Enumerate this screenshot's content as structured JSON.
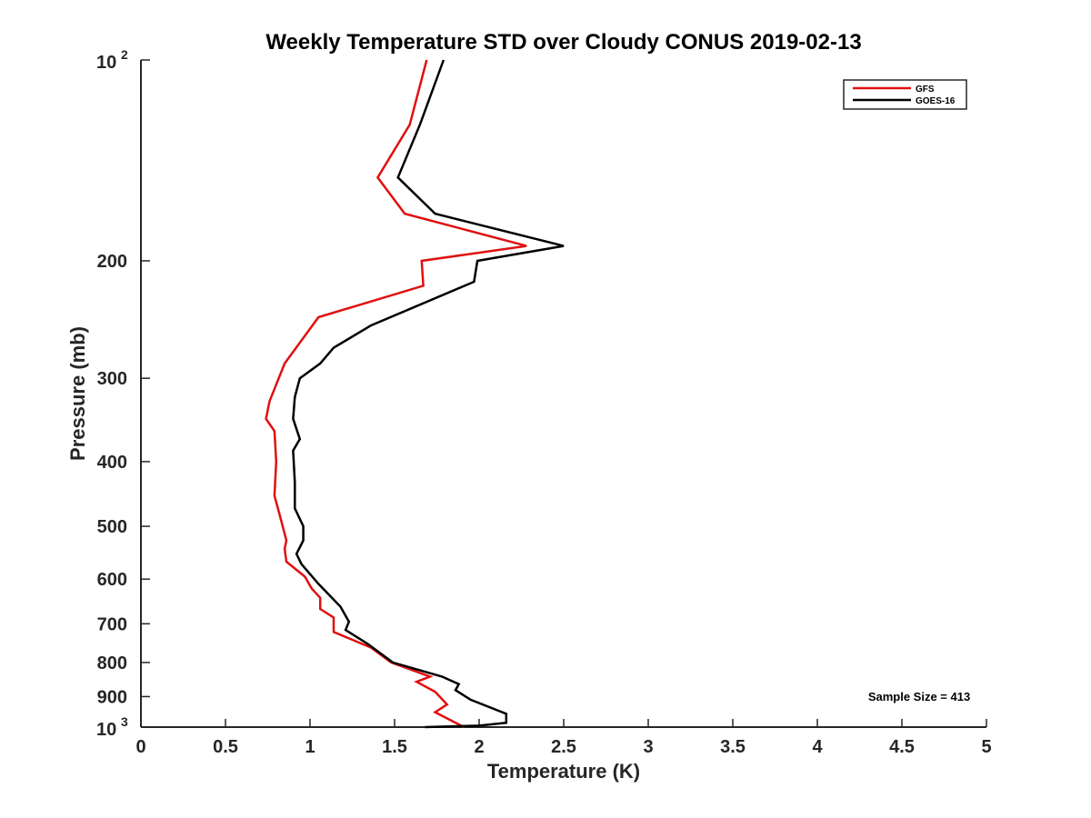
{
  "chart_data": {
    "type": "line",
    "title": "Weekly Temperature STD over Cloudy CONUS 2019-02-13",
    "xlabel": "Temperature (K)",
    "ylabel": "Pressure (mb)",
    "xlim": [
      0,
      5
    ],
    "ylim": [
      100,
      1000
    ],
    "yscale": "log",
    "yreversed": true,
    "grid": false,
    "legend_position": "top-right",
    "x_ticks": [
      0,
      0.5,
      1,
      1.5,
      2,
      2.5,
      3,
      3.5,
      4,
      4.5,
      5
    ],
    "x_tick_labels": [
      "0",
      "0.5",
      "1",
      "1.5",
      "2",
      "2.5",
      "3",
      "3.5",
      "4",
      "4.5",
      "5"
    ],
    "y_ticks": [
      {
        "value": 100,
        "base": "10",
        "exp": "2"
      },
      {
        "value": 200,
        "label": "200"
      },
      {
        "value": 300,
        "label": "300"
      },
      {
        "value": 400,
        "label": "400"
      },
      {
        "value": 500,
        "label": "500"
      },
      {
        "value": 600,
        "label": "600"
      },
      {
        "value": 700,
        "label": "700"
      },
      {
        "value": 800,
        "label": "800"
      },
      {
        "value": 900,
        "label": "900"
      },
      {
        "value": 1000,
        "base": "10",
        "exp": "3"
      }
    ],
    "series": [
      {
        "name": "GFS",
        "color": "#e01010",
        "points": [
          [
            1.69,
            100
          ],
          [
            1.59,
            125
          ],
          [
            1.4,
            150
          ],
          [
            1.56,
            170
          ],
          [
            2.28,
            190
          ],
          [
            1.66,
            200
          ],
          [
            1.67,
            218
          ],
          [
            1.05,
            243
          ],
          [
            0.85,
            285
          ],
          [
            0.76,
            325
          ],
          [
            0.74,
            345
          ],
          [
            0.79,
            360
          ],
          [
            0.8,
            400
          ],
          [
            0.79,
            450
          ],
          [
            0.82,
            480
          ],
          [
            0.86,
            525
          ],
          [
            0.85,
            540
          ],
          [
            0.86,
            565
          ],
          [
            0.97,
            595
          ],
          [
            1.01,
            620
          ],
          [
            1.06,
            640
          ],
          [
            1.06,
            665
          ],
          [
            1.14,
            685
          ],
          [
            1.14,
            720
          ],
          [
            1.36,
            760
          ],
          [
            1.48,
            800
          ],
          [
            1.71,
            840
          ],
          [
            1.63,
            855
          ],
          [
            1.74,
            885
          ],
          [
            1.81,
            925
          ],
          [
            1.74,
            950
          ],
          [
            1.91,
            1000
          ]
        ]
      },
      {
        "name": "GOES-16",
        "color": "#000000",
        "points": [
          [
            1.79,
            100
          ],
          [
            1.65,
            125
          ],
          [
            1.52,
            150
          ],
          [
            1.74,
            170
          ],
          [
            2.5,
            190
          ],
          [
            1.99,
            200
          ],
          [
            1.97,
            215
          ],
          [
            1.36,
            250
          ],
          [
            1.14,
            270
          ],
          [
            1.06,
            285
          ],
          [
            0.94,
            300
          ],
          [
            0.91,
            320
          ],
          [
            0.9,
            345
          ],
          [
            0.94,
            370
          ],
          [
            0.9,
            385
          ],
          [
            0.91,
            430
          ],
          [
            0.91,
            470
          ],
          [
            0.96,
            500
          ],
          [
            0.96,
            525
          ],
          [
            0.92,
            550
          ],
          [
            0.95,
            570
          ],
          [
            1.05,
            610
          ],
          [
            1.18,
            660
          ],
          [
            1.23,
            695
          ],
          [
            1.21,
            715
          ],
          [
            1.34,
            750
          ],
          [
            1.49,
            800
          ],
          [
            1.78,
            840
          ],
          [
            1.88,
            862
          ],
          [
            1.86,
            880
          ],
          [
            1.95,
            910
          ],
          [
            2.16,
            955
          ],
          [
            2.16,
            985
          ],
          [
            2.0,
            995
          ],
          [
            1.68,
            1000
          ]
        ]
      }
    ],
    "annotations": [
      {
        "text": "Sample Size = 413",
        "position": "bottom-right"
      }
    ]
  }
}
